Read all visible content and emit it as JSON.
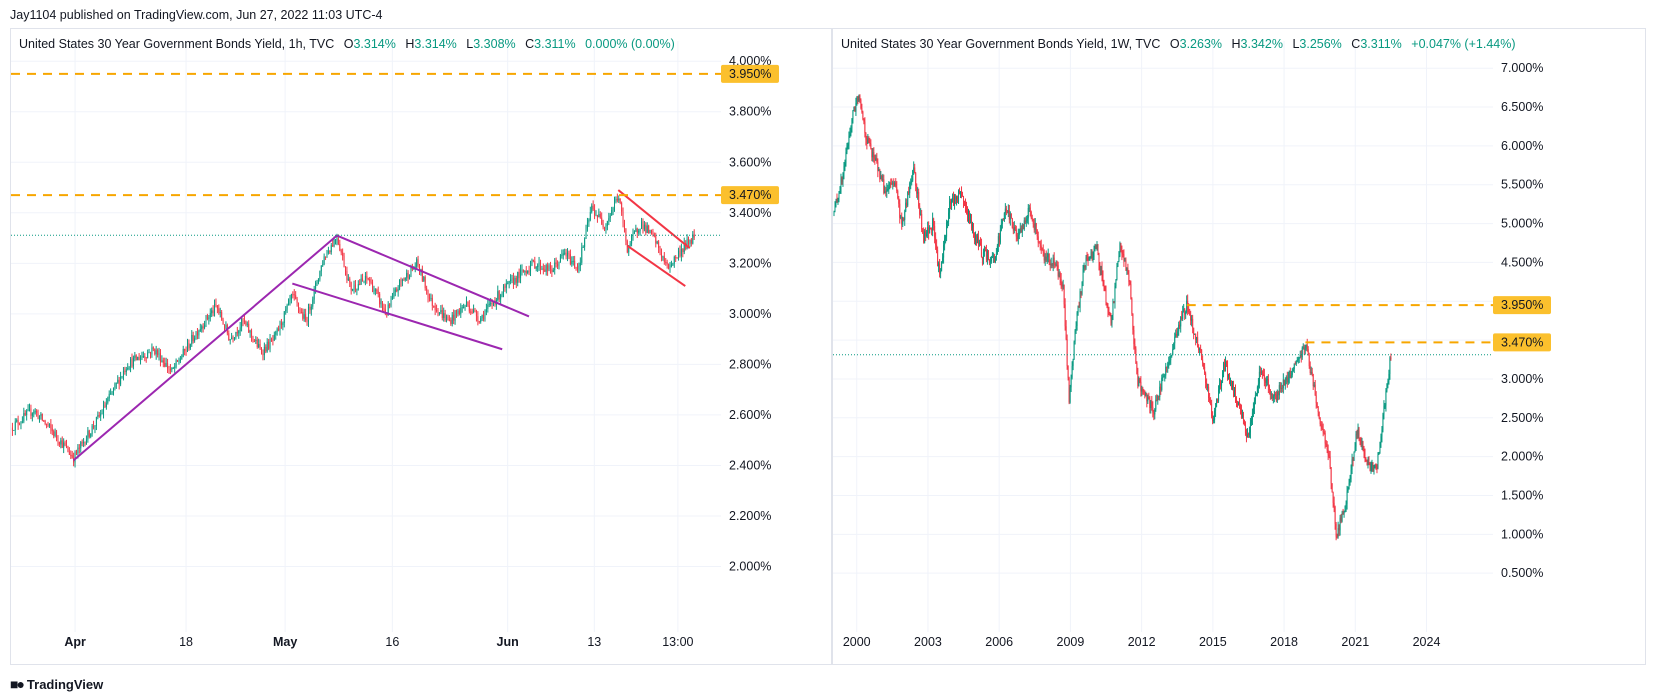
{
  "caption": "Jay1104 published on TradingView.com, Jun 27, 2022 11:03 UTC-4",
  "footer": {
    "brand": "TradingView"
  },
  "colors": {
    "up": "#089981",
    "down": "#f23645",
    "level": "#f7a600",
    "tag": "#fbc02d",
    "purple": "#9c27b0",
    "red": "#f23645",
    "grid": "#f0f3fa",
    "current": "#089981"
  },
  "chart_data": [
    {
      "id": "left",
      "type": "candlestick",
      "title": "United States 30 Year Government Bonds Yield, 1h, TVC",
      "ohlc": {
        "O": "3.314%",
        "H": "3.314%",
        "L": "3.308%",
        "C": "3.311%",
        "change": "0.000% (0.00%)"
      },
      "y_ticks": [
        "4.000%",
        "3.800%",
        "3.600%",
        "3.400%",
        "3.200%",
        "3.000%",
        "2.800%",
        "2.600%",
        "2.400%",
        "2.200%",
        "2.000%"
      ],
      "y_tick_values": [
        4.0,
        3.8,
        3.6,
        3.4,
        3.2,
        3.0,
        2.8,
        2.6,
        2.4,
        2.2,
        2.0
      ],
      "x_ticks": [
        "Apr",
        "18",
        "May",
        "16",
        "Jun",
        "13",
        "13:00"
      ],
      "x_bold": [
        "Apr",
        "May",
        "Jun"
      ],
      "ylim": [
        1.82,
        4.08
      ],
      "levels": [
        {
          "value": 3.95,
          "label": "3.950%"
        },
        {
          "value": 3.47,
          "label": "3.470%"
        }
      ],
      "current_price": 3.311,
      "path": [
        [
          0,
          2.55
        ],
        [
          5,
          2.62
        ],
        [
          10,
          2.52
        ],
        [
          14,
          2.43
        ],
        [
          20,
          2.6
        ],
        [
          26,
          2.8
        ],
        [
          32,
          2.86
        ],
        [
          36,
          2.77
        ],
        [
          42,
          2.94
        ],
        [
          46,
          3.03
        ],
        [
          49,
          2.9
        ],
        [
          52,
          2.97
        ],
        [
          56,
          2.85
        ],
        [
          59,
          2.9
        ],
        [
          63,
          3.07
        ],
        [
          66,
          2.97
        ],
        [
          70,
          3.22
        ],
        [
          73,
          3.31
        ],
        [
          76,
          3.1
        ],
        [
          80,
          3.14
        ],
        [
          84,
          3.0
        ],
        [
          87,
          3.12
        ],
        [
          91,
          3.2
        ],
        [
          94,
          3.05
        ],
        [
          98,
          2.97
        ],
        [
          102,
          3.04
        ],
        [
          105,
          2.98
        ],
        [
          109,
          3.07
        ],
        [
          113,
          3.14
        ],
        [
          117,
          3.2
        ],
        [
          121,
          3.17
        ],
        [
          124,
          3.24
        ],
        [
          127,
          3.18
        ],
        [
          130,
          3.42
        ],
        [
          133,
          3.35
        ],
        [
          136,
          3.47
        ],
        [
          138,
          3.26
        ],
        [
          141,
          3.36
        ],
        [
          144,
          3.3
        ],
        [
          147,
          3.18
        ],
        [
          150,
          3.25
        ],
        [
          153,
          3.31
        ]
      ],
      "trend_lines": [
        {
          "color": "purple",
          "from": [
            14,
            2.42
          ],
          "to": [
            73,
            3.31
          ]
        },
        {
          "color": "purple",
          "from": [
            73,
            3.31
          ],
          "to": [
            116,
            2.99
          ]
        },
        {
          "color": "purple",
          "from": [
            63,
            3.12
          ],
          "to": [
            110,
            2.86
          ]
        },
        {
          "color": "red",
          "from": [
            136,
            3.49
          ],
          "to": [
            152,
            3.26
          ]
        },
        {
          "color": "red",
          "from": [
            138,
            3.27
          ],
          "to": [
            151,
            3.11
          ]
        }
      ],
      "xlim": [
        0,
        159
      ]
    },
    {
      "id": "right",
      "type": "candlestick",
      "title": "United States 30 Year Government Bonds Yield, 1W, TVC",
      "ohlc": {
        "O": "3.263%",
        "H": "3.342%",
        "L": "3.256%",
        "C": "3.311%",
        "change": "+0.047% (+1.44%)"
      },
      "y_ticks": [
        "7.000%",
        "6.500%",
        "6.000%",
        "5.500%",
        "5.000%",
        "4.500%",
        "4.000%",
        "3.500%",
        "3.000%",
        "2.500%",
        "2.000%",
        "1.500%",
        "1.000%",
        "0.500%"
      ],
      "y_tick_values": [
        7.0,
        6.5,
        6.0,
        5.5,
        5.0,
        4.5,
        4.0,
        3.5,
        3.0,
        2.5,
        2.0,
        1.5,
        1.0,
        0.5
      ],
      "x_ticks": [
        "2000",
        "2003",
        "2006",
        "2009",
        "2012",
        "2015",
        "2018",
        "2021",
        "2024"
      ],
      "x_tick_values": [
        2000,
        2003,
        2006,
        2009,
        2012,
        2015,
        2018,
        2021,
        2024
      ],
      "ylim": [
        0.0,
        7.35
      ],
      "xlim": [
        1999.0,
        2026.8
      ],
      "levels": [
        {
          "value": 3.95,
          "label": "3.950%",
          "from": 2013.9
        },
        {
          "value": 3.47,
          "label": "3.470%",
          "from": 2018.9
        }
      ],
      "current_price": 3.311,
      "path": [
        [
          1999.0,
          5.1
        ],
        [
          1999.4,
          5.6
        ],
        [
          1999.8,
          6.35
        ],
        [
          2000.1,
          6.7
        ],
        [
          2000.4,
          6.1
        ],
        [
          2000.8,
          5.8
        ],
        [
          2001.2,
          5.4
        ],
        [
          2001.6,
          5.55
        ],
        [
          2001.9,
          4.95
        ],
        [
          2002.4,
          5.75
        ],
        [
          2002.8,
          4.8
        ],
        [
          2003.2,
          5.0
        ],
        [
          2003.5,
          4.3
        ],
        [
          2003.9,
          5.25
        ],
        [
          2004.4,
          5.4
        ],
        [
          2004.9,
          4.9
        ],
        [
          2005.3,
          4.6
        ],
        [
          2005.8,
          4.55
        ],
        [
          2006.3,
          5.2
        ],
        [
          2006.8,
          4.8
        ],
        [
          2007.3,
          5.2
        ],
        [
          2007.8,
          4.6
        ],
        [
          2008.3,
          4.5
        ],
        [
          2008.7,
          4.2
        ],
        [
          2008.95,
          2.7
        ],
        [
          2009.2,
          3.6
        ],
        [
          2009.6,
          4.5
        ],
        [
          2010.1,
          4.7
        ],
        [
          2010.7,
          3.7
        ],
        [
          2011.1,
          4.75
        ],
        [
          2011.5,
          4.2
        ],
        [
          2011.8,
          3.0
        ],
        [
          2012.5,
          2.6
        ],
        [
          2013.0,
          3.1
        ],
        [
          2013.5,
          3.6
        ],
        [
          2013.9,
          3.95
        ],
        [
          2014.5,
          3.3
        ],
        [
          2015.0,
          2.5
        ],
        [
          2015.5,
          3.2
        ],
        [
          2016.1,
          2.6
        ],
        [
          2016.5,
          2.25
        ],
        [
          2017.0,
          3.1
        ],
        [
          2017.6,
          2.75
        ],
        [
          2018.3,
          3.1
        ],
        [
          2018.9,
          3.45
        ],
        [
          2019.5,
          2.5
        ],
        [
          2019.9,
          2.0
        ],
        [
          2020.2,
          1.0
        ],
        [
          2020.6,
          1.4
        ],
        [
          2021.1,
          2.35
        ],
        [
          2021.6,
          1.85
        ],
        [
          2021.9,
          1.85
        ],
        [
          2022.2,
          2.6
        ],
        [
          2022.5,
          3.311
        ]
      ]
    }
  ]
}
